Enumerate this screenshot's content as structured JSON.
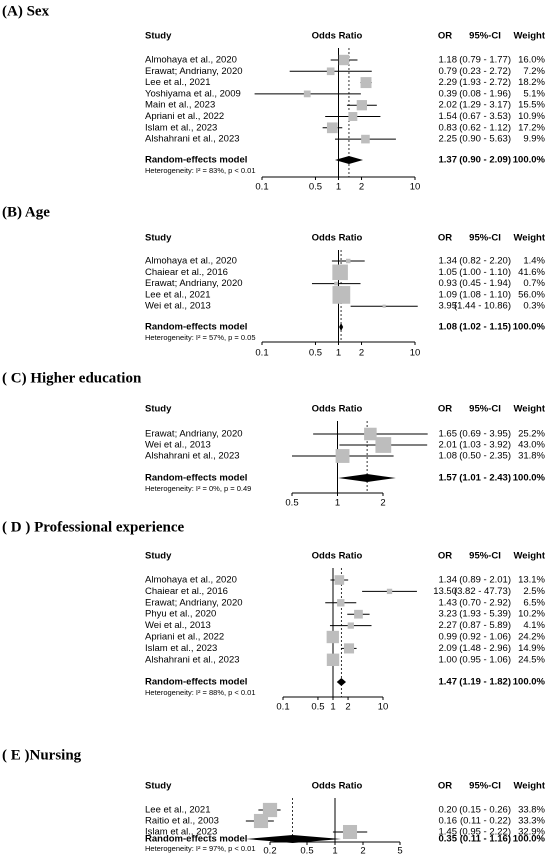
{
  "chart_data": [
    {
      "type": "forest",
      "title": "(A) Sex",
      "log": true,
      "null_line": 1,
      "columns": {
        "study": "Study",
        "plot": "Odds Ratio",
        "or": "OR",
        "ci": "95%-CI",
        "weight": "Weight"
      },
      "studies": [
        "Almohaya et al., 2020",
        "Erawat; Andriany, 2020",
        "Lee et al., 2021",
        "Yoshiyama et al., 2009",
        "Main et al., 2023",
        "Apriani et al., 2022",
        "Islam et al., 2023",
        "Alshahrani et al., 2023"
      ],
      "values": [
        1.18,
        0.79,
        2.29,
        0.39,
        2.02,
        1.54,
        0.83,
        2.25
      ],
      "lower": [
        0.79,
        0.23,
        1.93,
        0.08,
        1.29,
        0.67,
        0.62,
        0.9
      ],
      "upper": [
        1.77,
        2.72,
        2.72,
        1.96,
        3.17,
        3.53,
        1.12,
        5.63
      ],
      "weights": [
        16.0,
        7.2,
        18.2,
        5.1,
        15.5,
        10.9,
        17.2,
        9.9
      ],
      "value_labels": [
        "1.18",
        "0.79",
        "2.29",
        "0.39",
        "2.02",
        "1.54",
        "0.83",
        "2.25"
      ],
      "ci_labels": [
        "(0.79 - 1.77)",
        "(0.23 - 2.72)",
        "(1.93 - 2.72)",
        "(0.08 - 1.96)",
        "(1.29 - 3.17)",
        "(0.67 - 3.53)",
        "(0.62 - 1.12)",
        "(0.90 - 5.63)"
      ],
      "weight_labels": [
        "16.0%",
        "7.2%",
        "18.2%",
        "5.1%",
        "15.5%",
        "10.9%",
        "17.2%",
        "9.9%"
      ],
      "pooled": {
        "name": "Random-effects model",
        "value": 1.37,
        "lower": 0.9,
        "upper": 2.09,
        "value_label": "1.37",
        "ci_label": "(0.90 - 2.09)",
        "weight_label": "100.0%"
      },
      "heterogeneity": "Heterogeneity: I² = 83%, p < 0.01",
      "xlim": [
        0.1,
        10
      ],
      "xticks": [
        0.1,
        0.5,
        1,
        2,
        10
      ]
    },
    {
      "type": "forest",
      "title": "(B) Age",
      "log": true,
      "null_line": 1,
      "columns": {
        "study": "Study",
        "plot": "Odds Ratio",
        "or": "OR",
        "ci": "95%-CI",
        "weight": "Weight"
      },
      "studies": [
        "Almohaya et al., 2020",
        "Chaiear et al., 2016",
        "Erawat; Andriany, 2020",
        "Lee et al., 2021",
        "Wei et al., 2013"
      ],
      "values": [
        1.34,
        1.05,
        0.93,
        1.09,
        3.95
      ],
      "lower": [
        0.82,
        1.0,
        0.45,
        1.08,
        1.44
      ],
      "upper": [
        2.2,
        1.1,
        1.94,
        1.1,
        10.86
      ],
      "weights": [
        1.4,
        41.6,
        0.7,
        56.0,
        0.3
      ],
      "value_labels": [
        "1.34",
        "1.05",
        "0.93",
        "1.09",
        "3.95"
      ],
      "ci_labels": [
        "(0.82 - 2.20)",
        "(1.00 - 1.10)",
        "(0.45 - 1.94)",
        "(1.08 - 1.10)",
        "(1.44 - 10.86)"
      ],
      "weight_labels": [
        "1.4%",
        "41.6%",
        "0.7%",
        "56.0%",
        "0.3%"
      ],
      "pooled": {
        "name": "Random-effects model",
        "value": 1.08,
        "lower": 1.02,
        "upper": 1.15,
        "value_label": "1.08",
        "ci_label": "(1.02 - 1.15)",
        "weight_label": "100.0%"
      },
      "heterogeneity": "Heterogeneity: I² = 57%, p = 0.05",
      "xlim": [
        0.1,
        10
      ],
      "xticks": [
        0.1,
        0.5,
        1,
        2,
        10
      ]
    },
    {
      "type": "forest",
      "title": "( C) Higher education",
      "log": true,
      "null_line": 1,
      "columns": {
        "study": "Study",
        "plot": "Odds Ratio",
        "or": "OR",
        "ci": "95%-CI",
        "weight": "Weight"
      },
      "studies": [
        "Erawat; Andriany, 2020",
        "Wei et al., 2013",
        "Alshahrani et al., 2023"
      ],
      "values": [
        1.65,
        2.01,
        1.08
      ],
      "lower": [
        0.69,
        1.03,
        0.5
      ],
      "upper": [
        3.95,
        3.92,
        2.35
      ],
      "weights": [
        25.2,
        43.0,
        31.8
      ],
      "value_labels": [
        "1.65",
        "2.01",
        "1.08"
      ],
      "ci_labels": [
        "(0.69 - 3.95)",
        "(1.03 - 3.92)",
        "(0.50 - 2.35)"
      ],
      "weight_labels": [
        "25.2%",
        "43.0%",
        "31.8%"
      ],
      "pooled": {
        "name": "Random-effects model",
        "value": 1.57,
        "lower": 1.01,
        "upper": 2.43,
        "value_label": "1.57",
        "ci_label": "(1.01 - 2.43)",
        "weight_label": "100.0%"
      },
      "heterogeneity": "Heterogeneity: I² = 0%, p = 0.49",
      "xlim": [
        0.5,
        2
      ],
      "xticks": [
        0.5,
        1,
        2
      ]
    },
    {
      "type": "forest",
      "title": "( D ) Professional experience",
      "log": true,
      "null_line": 1,
      "columns": {
        "study": "Study",
        "plot": "Odds Ratio",
        "or": "OR",
        "ci": "95%-CI",
        "weight": "Weight"
      },
      "studies": [
        "Almohaya et al., 2020",
        "Chaiear et al., 2016",
        "Erawat; Andriany, 2020",
        "Phyu et al., 2020",
        "Wei et al., 2013",
        "Apriani et al., 2022",
        "Islam et al., 2023",
        "Alshahrani et al., 2023"
      ],
      "values": [
        1.34,
        13.5,
        1.43,
        3.23,
        2.27,
        0.99,
        2.09,
        1.0
      ],
      "lower": [
        0.89,
        3.82,
        0.7,
        1.93,
        0.87,
        0.92,
        1.48,
        0.95
      ],
      "upper": [
        2.01,
        47.73,
        2.92,
        5.39,
        5.89,
        1.06,
        2.96,
        1.06
      ],
      "weights": [
        13.1,
        2.5,
        6.5,
        10.2,
        4.1,
        24.2,
        14.9,
        24.5
      ],
      "value_labels": [
        "1.34",
        "13.50",
        "1.43",
        "3.23",
        "2.27",
        "0.99",
        "2.09",
        "1.00"
      ],
      "ci_labels": [
        "(0.89 - 2.01)",
        "(3.82 - 47.73)",
        "(0.70 - 2.92)",
        "(1.93 - 5.39)",
        "(0.87 - 5.89)",
        "(0.92 - 1.06)",
        "(1.48 - 2.96)",
        "(0.95 - 1.06)"
      ],
      "weight_labels": [
        "13.1%",
        "2.5%",
        "6.5%",
        "10.2%",
        "4.1%",
        "24.2%",
        "14.9%",
        "24.5%"
      ],
      "pooled": {
        "name": "Random-effects model",
        "value": 1.47,
        "lower": 1.19,
        "upper": 1.82,
        "value_label": "1.47",
        "ci_label": "(1.19 - 1.82)",
        "weight_label": "100.0%"
      },
      "heterogeneity": "Heterogeneity: I² = 88%, p < 0.01",
      "xlim": [
        0.1,
        10
      ],
      "xticks": [
        0.1,
        0.5,
        1,
        2,
        10
      ]
    },
    {
      "type": "forest",
      "title": "( E )Nursing",
      "log": true,
      "null_line": 1,
      "columns": {
        "study": "Study",
        "plot": "Odds Ratio",
        "or": "OR",
        "ci": "95%-CI",
        "weight": "Weight"
      },
      "studies": [
        "Lee et al., 2021",
        "Raitio et al., 2003",
        "Islam et al., 2023"
      ],
      "values": [
        0.2,
        0.16,
        1.45
      ],
      "lower": [
        0.15,
        0.11,
        0.95
      ],
      "upper": [
        0.26,
        0.22,
        2.22
      ],
      "weights": [
        33.8,
        33.3,
        32.9
      ],
      "value_labels": [
        "0.20",
        "0.16",
        "1.45"
      ],
      "ci_labels": [
        "(0.15 - 0.26)",
        "(0.11 - 0.22)",
        "(0.95 - 2.22)"
      ],
      "weight_labels": [
        "33.8%",
        "33.3%",
        "32.9%"
      ],
      "pooled": {
        "name": "Random-effects model",
        "value": 0.35,
        "lower": 0.11,
        "upper": 1.16,
        "value_label": "0.35",
        "ci_label": "(0.11 - 1.16)",
        "weight_label": "100.0%"
      },
      "heterogeneity": "Heterogeneity: I² = 97%, p < 0.01",
      "xlim": [
        0.2,
        5
      ],
      "xticks": [
        0.2,
        0.5,
        1,
        2,
        5
      ]
    }
  ]
}
